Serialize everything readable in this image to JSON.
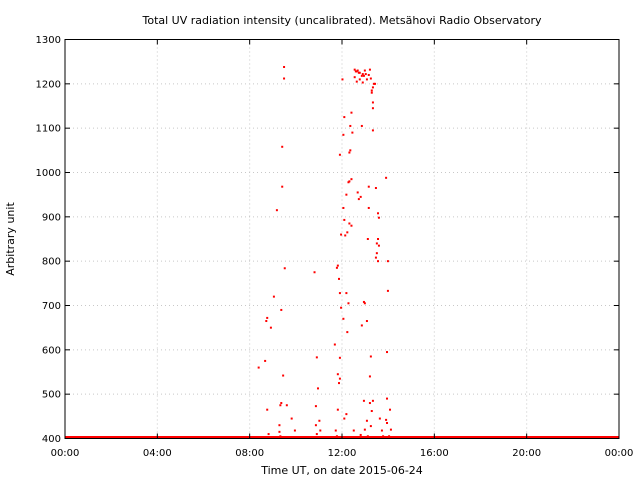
{
  "chart_data": {
    "type": "scatter",
    "title": "Total UV radiation intensity (uncalibrated). Metsähovi Radio Observatory",
    "xlabel": "Time UT, on date 2015-06-24",
    "ylabel": "Arbitrary unit",
    "xlim": [
      0,
      24
    ],
    "ylim": [
      400,
      1300
    ],
    "x_ticks": [
      {
        "value": 0,
        "label": "00:00"
      },
      {
        "value": 4,
        "label": "04:00"
      },
      {
        "value": 8,
        "label": "08:00"
      },
      {
        "value": 12,
        "label": "12:00"
      },
      {
        "value": 16,
        "label": "16:00"
      },
      {
        "value": 20,
        "label": "20:00"
      },
      {
        "value": 24,
        "label": "00:00"
      }
    ],
    "y_ticks": [
      {
        "value": 400,
        "label": "400"
      },
      {
        "value": 500,
        "label": "500"
      },
      {
        "value": 600,
        "label": "600"
      },
      {
        "value": 700,
        "label": "700"
      },
      {
        "value": 800,
        "label": "800"
      },
      {
        "value": 900,
        "label": "900"
      },
      {
        "value": 1000,
        "label": "1000"
      },
      {
        "value": 1100,
        "label": "1100"
      },
      {
        "value": 1200,
        "label": "1200"
      },
      {
        "value": 1300,
        "label": "1300"
      }
    ],
    "grid": true,
    "series_color": "#ff0000",
    "baseline": {
      "value": 400,
      "x_start": 0,
      "x_end": 24
    },
    "points": [
      [
        8.39,
        560
      ],
      [
        8.67,
        575
      ],
      [
        8.72,
        665
      ],
      [
        8.76,
        672
      ],
      [
        8.76,
        465
      ],
      [
        8.82,
        410
      ],
      [
        8.92,
        650
      ],
      [
        9.05,
        720
      ],
      [
        9.18,
        915
      ],
      [
        9.29,
        430
      ],
      [
        9.29,
        415
      ],
      [
        9.33,
        475
      ],
      [
        9.33,
        405
      ],
      [
        9.37,
        690
      ],
      [
        9.37,
        480
      ],
      [
        9.41,
        1058
      ],
      [
        9.41,
        968
      ],
      [
        9.45,
        542
      ],
      [
        9.49,
        1238
      ],
      [
        9.49,
        1212
      ],
      [
        9.52,
        784
      ],
      [
        9.61,
        475
      ],
      [
        9.82,
        445
      ],
      [
        9.96,
        418
      ],
      [
        10.81,
        775
      ],
      [
        10.87,
        473
      ],
      [
        10.87,
        430
      ],
      [
        10.91,
        583
      ],
      [
        10.91,
        410
      ],
      [
        10.96,
        513
      ],
      [
        11.02,
        440
      ],
      [
        11.06,
        418
      ],
      [
        11.69,
        612
      ],
      [
        11.73,
        418
      ],
      [
        11.78,
        785
      ],
      [
        11.78,
        405
      ],
      [
        11.82,
        790
      ],
      [
        11.82,
        545
      ],
      [
        11.82,
        465
      ],
      [
        11.87,
        760
      ],
      [
        11.87,
        525
      ],
      [
        11.91,
        1040
      ],
      [
        11.91,
        728
      ],
      [
        11.91,
        582
      ],
      [
        11.91,
        535
      ],
      [
        11.96,
        860
      ],
      [
        11.96,
        695
      ],
      [
        12.02,
        1210
      ],
      [
        12.06,
        1085
      ],
      [
        12.06,
        920
      ],
      [
        12.06,
        670
      ],
      [
        12.1,
        1125
      ],
      [
        12.1,
        893
      ],
      [
        12.1,
        445
      ],
      [
        12.14,
        858
      ],
      [
        12.19,
        950
      ],
      [
        12.19,
        728
      ],
      [
        12.19,
        455
      ],
      [
        12.23,
        865
      ],
      [
        12.23,
        640
      ],
      [
        12.28,
        978
      ],
      [
        12.28,
        705
      ],
      [
        12.32,
        1045
      ],
      [
        12.32,
        980
      ],
      [
        12.32,
        885
      ],
      [
        12.36,
        1105
      ],
      [
        12.36,
        1050
      ],
      [
        12.41,
        1135
      ],
      [
        12.41,
        985
      ],
      [
        12.41,
        880
      ],
      [
        12.45,
        1090
      ],
      [
        12.51,
        418
      ],
      [
        12.55,
        1232
      ],
      [
        12.55,
        1215
      ],
      [
        12.6,
        1228
      ],
      [
        12.64,
        1228
      ],
      [
        12.64,
        1205
      ],
      [
        12.68,
        1230
      ],
      [
        12.68,
        955
      ],
      [
        12.73,
        1225
      ],
      [
        12.73,
        940
      ],
      [
        12.77,
        1225
      ],
      [
        12.77,
        1210
      ],
      [
        12.81,
        945
      ],
      [
        12.81,
        408
      ],
      [
        12.86,
        1218
      ],
      [
        12.86,
        1105
      ],
      [
        12.86,
        655
      ],
      [
        12.9,
        1222
      ],
      [
        12.9,
        1203
      ],
      [
        12.95,
        1218
      ],
      [
        12.95,
        708
      ],
      [
        12.95,
        485
      ],
      [
        12.99,
        1230
      ],
      [
        12.99,
        705
      ],
      [
        12.99,
        420
      ],
      [
        13.03,
        1222
      ],
      [
        13.08,
        1210
      ],
      [
        13.08,
        665
      ],
      [
        13.08,
        440
      ],
      [
        13.12,
        850
      ],
      [
        13.12,
        405
      ],
      [
        13.16,
        1220
      ],
      [
        13.16,
        968
      ],
      [
        13.16,
        920
      ],
      [
        13.21,
        1232
      ],
      [
        13.21,
        540
      ],
      [
        13.21,
        480
      ],
      [
        13.25,
        1212
      ],
      [
        13.25,
        585
      ],
      [
        13.25,
        428
      ],
      [
        13.29,
        1180
      ],
      [
        13.29,
        1185
      ],
      [
        13.29,
        462
      ],
      [
        13.34,
        1192
      ],
      [
        13.34,
        1158
      ],
      [
        13.34,
        1145
      ],
      [
        13.34,
        1095
      ],
      [
        13.34,
        485
      ],
      [
        13.38,
        1200
      ],
      [
        13.43,
        1200
      ],
      [
        13.47,
        965
      ],
      [
        13.47,
        808
      ],
      [
        13.51,
        840
      ],
      [
        13.51,
        818
      ],
      [
        13.56,
        908
      ],
      [
        13.56,
        850
      ],
      [
        13.56,
        800
      ],
      [
        13.6,
        898
      ],
      [
        13.6,
        835
      ],
      [
        13.64,
        445
      ],
      [
        13.73,
        418
      ],
      [
        13.78,
        405
      ],
      [
        13.91,
        988
      ],
      [
        13.91,
        442
      ],
      [
        13.95,
        595
      ],
      [
        13.95,
        490
      ],
      [
        13.95,
        435
      ],
      [
        13.99,
        800
      ],
      [
        13.99,
        733
      ],
      [
        14.04,
        405
      ],
      [
        14.08,
        465
      ],
      [
        14.12,
        420
      ]
    ]
  }
}
